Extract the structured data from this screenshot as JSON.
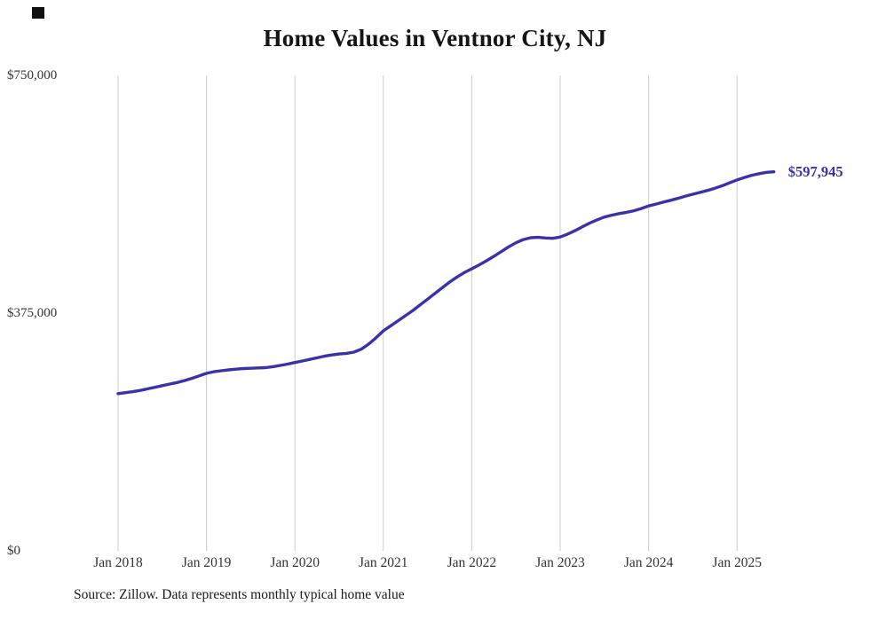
{
  "chart_data": {
    "type": "line",
    "title": "Home Values in Ventnor City, NJ",
    "source_note": "Source: Zillow. Data represents monthly typical home value",
    "series_name": "Typical home value (monthly)",
    "frequency": "monthly",
    "start": "2018-01",
    "end": "2025-06",
    "ylim": [
      0,
      750000
    ],
    "y_tick_labels": [
      "$750,000",
      "$375,000",
      "$0"
    ],
    "y_tick_values": [
      750000,
      375000,
      0
    ],
    "x_ticks": [
      "Jan 2018",
      "Jan 2019",
      "Jan 2020",
      "Jan 2021",
      "Jan 2022",
      "Jan 2023",
      "Jan 2024",
      "Jan 2025"
    ],
    "x_tick_month_indices": [
      0,
      12,
      24,
      36,
      48,
      60,
      72,
      84
    ],
    "end_label": "$597,945",
    "end_value": 597945,
    "line_color": "#3a32aa",
    "grid_color": "#cccccc",
    "grid": "vertical-only",
    "legend": "none",
    "values": [
      248000,
      249500,
      251000,
      253000,
      255500,
      258000,
      260500,
      263000,
      265500,
      268500,
      272000,
      276000,
      280000,
      282500,
      284000,
      285500,
      286500,
      287500,
      288000,
      288500,
      289000,
      290500,
      292500,
      294500,
      297000,
      299500,
      302000,
      304500,
      307000,
      309000,
      310500,
      311500,
      313500,
      318000,
      326000,
      336000,
      347000,
      355000,
      363000,
      371000,
      379000,
      388000,
      397000,
      406000,
      415000,
      424000,
      432000,
      439000,
      445000,
      451000,
      457500,
      464500,
      472000,
      479500,
      486000,
      491000,
      494000,
      494500,
      493500,
      493000,
      495000,
      499500,
      505000,
      511000,
      517000,
      522000,
      526500,
      529500,
      532000,
      534000,
      536500,
      540000,
      544000,
      547000,
      550000,
      553000,
      556000,
      559500,
      562500,
      565500,
      568500,
      572000,
      576000,
      580500,
      585000,
      589000,
      592500,
      595000,
      597000,
      597945
    ]
  }
}
